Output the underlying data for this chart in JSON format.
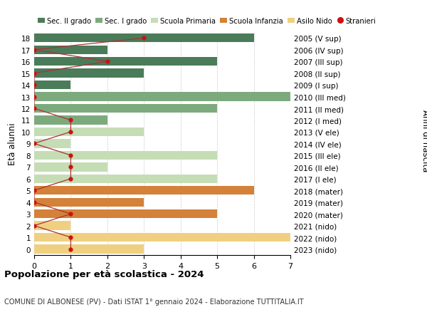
{
  "ages": [
    18,
    17,
    16,
    15,
    14,
    13,
    12,
    11,
    10,
    9,
    8,
    7,
    6,
    5,
    4,
    3,
    2,
    1,
    0
  ],
  "right_labels": [
    "2005 (V sup)",
    "2006 (IV sup)",
    "2007 (III sup)",
    "2008 (II sup)",
    "2009 (I sup)",
    "2010 (III med)",
    "2011 (II med)",
    "2012 (I med)",
    "2013 (V ele)",
    "2014 (IV ele)",
    "2015 (III ele)",
    "2016 (II ele)",
    "2017 (I ele)",
    "2018 (mater)",
    "2019 (mater)",
    "2020 (mater)",
    "2021 (nido)",
    "2022 (nido)",
    "2023 (nido)"
  ],
  "bar_values": [
    6,
    2,
    5,
    3,
    1,
    7,
    5,
    2,
    3,
    1,
    5,
    2,
    5,
    6,
    3,
    5,
    1,
    7,
    3
  ],
  "bar_colors": [
    "#4a7c59",
    "#4a7c59",
    "#4a7c59",
    "#4a7c59",
    "#4a7c59",
    "#7daa7d",
    "#7daa7d",
    "#7daa7d",
    "#c5ddb5",
    "#c5ddb5",
    "#c5ddb5",
    "#c5ddb5",
    "#c5ddb5",
    "#d4813a",
    "#d4813a",
    "#d4813a",
    "#f0d080",
    "#f0d080",
    "#f0d080"
  ],
  "stranieri_x": [
    3,
    0,
    2,
    0,
    0,
    0,
    0,
    1,
    1,
    0,
    1,
    1,
    1,
    0,
    0,
    1,
    0,
    1,
    1
  ],
  "legend_labels": [
    "Sec. II grado",
    "Sec. I grado",
    "Scuola Primaria",
    "Scuola Infanzia",
    "Asilo Nido",
    "Stranieri"
  ],
  "legend_colors": [
    "#4a7c59",
    "#7daa7d",
    "#c5ddb5",
    "#d4813a",
    "#f0d080",
    "#cc1111"
  ],
  "stranieri_line_color": "#aa3333",
  "stranieri_dot_color": "#cc1111",
  "left_ylabel": "Età alunni",
  "right_ylabel": "Anni di nascita",
  "title": "Popolazione per età scolastica - 2024",
  "subtitle": "COMUNE DI ALBONESE (PV) - Dati ISTAT 1° gennaio 2024 - Elaborazione TUTTITALIA.IT",
  "xlim": [
    0,
    7
  ],
  "background_color": "#ffffff",
  "grid_color": "#cccccc"
}
